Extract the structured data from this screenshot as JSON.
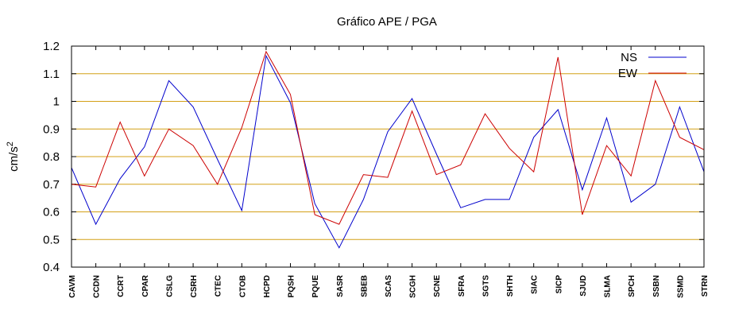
{
  "chart_data": {
    "type": "line",
    "title": "Gráfico  APE / PGA",
    "xlabel": "",
    "ylabel": "cm/s",
    "ylabel_superscript": "2",
    "ylim": [
      0.4,
      1.2
    ],
    "yticks": [
      "0.4",
      "0.5",
      "0.6",
      "0.7",
      "0.8",
      "0.9",
      "1",
      "1.1",
      "1.2"
    ],
    "grid": true,
    "legend_position": "top-right",
    "categories": [
      "CAVM",
      "CCDN",
      "CCRT",
      "CPAR",
      "CSLG",
      "CSRH",
      "CTEC",
      "CTOB",
      "HCPD",
      "PQSH",
      "PQUE",
      "SASR",
      "SBEB",
      "SCAS",
      "SCGH",
      "SCNE",
      "SFRA",
      "SGTS",
      "SHTH",
      "SIAC",
      "SICP",
      "SJUD",
      "SLMA",
      "SPCH",
      "SSBN",
      "SSMD",
      "STRN"
    ],
    "series": [
      {
        "name": "NS",
        "color": "#0000cc",
        "values": [
          0.76,
          0.555,
          0.72,
          0.835,
          1.075,
          0.98,
          0.79,
          0.605,
          1.165,
          0.995,
          0.63,
          0.47,
          0.645,
          0.89,
          1.01,
          0.81,
          0.615,
          0.645,
          0.645,
          0.87,
          0.97,
          0.68,
          0.94,
          0.635,
          0.7,
          0.98,
          0.745
        ]
      },
      {
        "name": "EW",
        "color": "#cc0000",
        "values": [
          0.7,
          0.69,
          0.925,
          0.73,
          0.9,
          0.84,
          0.7,
          0.905,
          1.18,
          1.025,
          0.59,
          0.555,
          0.735,
          0.725,
          0.965,
          0.735,
          0.77,
          0.955,
          0.83,
          0.745,
          1.16,
          0.59,
          0.84,
          0.73,
          1.075,
          0.87,
          0.825
        ]
      }
    ],
    "colors": {
      "grid": "#d4a017",
      "axis": "#000000"
    }
  }
}
